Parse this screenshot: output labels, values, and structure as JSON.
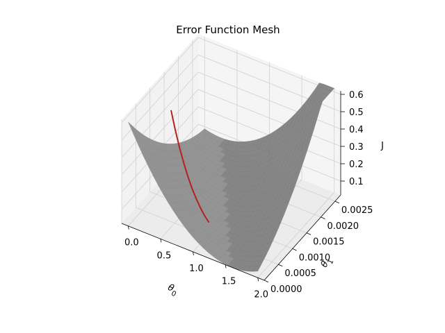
{
  "chart_data": {
    "type": "surface3d",
    "title": "Error Function Mesh",
    "xlabel": "θ0",
    "ylabel": "θ1",
    "zlabel": "J",
    "xlim": [
      -0.1,
      2.1
    ],
    "ylim": [
      0.0,
      0.0027
    ],
    "zlim": [
      0.02,
      0.62
    ],
    "x_ticks": [
      0.0,
      0.5,
      1.0,
      1.5,
      2.0
    ],
    "x_tick_labels": [
      "0.0",
      "0.5",
      "1.0",
      "1.5",
      "2.0"
    ],
    "y_ticks": [
      0.0,
      0.0005,
      0.001,
      0.0015,
      0.002,
      0.0025
    ],
    "y_tick_labels": [
      "0.0000",
      "0.0005",
      "0.0010",
      "0.0015",
      "0.0020",
      "0.0025"
    ],
    "z_ticks": [
      0.1,
      0.2,
      0.3,
      0.4,
      0.5,
      0.6
    ],
    "z_tick_labels": [
      "0.1",
      "0.2",
      "0.3",
      "0.4",
      "0.5",
      "0.6"
    ],
    "surface": {
      "x_range": [
        0.0,
        2.0
      ],
      "y_range": [
        0.0,
        0.0027
      ],
      "x_min_at_y0": 1.6,
      "x_min_slope": -500,
      "curvature": 0.235,
      "color": "#808080"
    },
    "series": [
      {
        "points": [
          {
            "x": 0.05,
            "y": 0.0014,
            "z": 0.44
          },
          {
            "x": 0.15,
            "y": 0.00132,
            "z": 0.355
          },
          {
            "x": 0.25,
            "y": 0.00124,
            "z": 0.285
          },
          {
            "x": 0.35,
            "y": 0.00116,
            "z": 0.225
          },
          {
            "x": 0.45,
            "y": 0.00108,
            "z": 0.175
          },
          {
            "x": 0.55,
            "y": 0.001,
            "z": 0.135
          },
          {
            "x": 0.65,
            "y": 0.00092,
            "z": 0.105
          },
          {
            "x": 0.75,
            "y": 0.00084,
            "z": 0.082
          },
          {
            "x": 0.85,
            "y": 0.00076,
            "z": 0.066
          },
          {
            "x": 0.95,
            "y": 0.00068,
            "z": 0.058
          }
        ],
        "color": "#b22222"
      }
    ],
    "pane_color": "#f2f2f2",
    "grid": true
  }
}
